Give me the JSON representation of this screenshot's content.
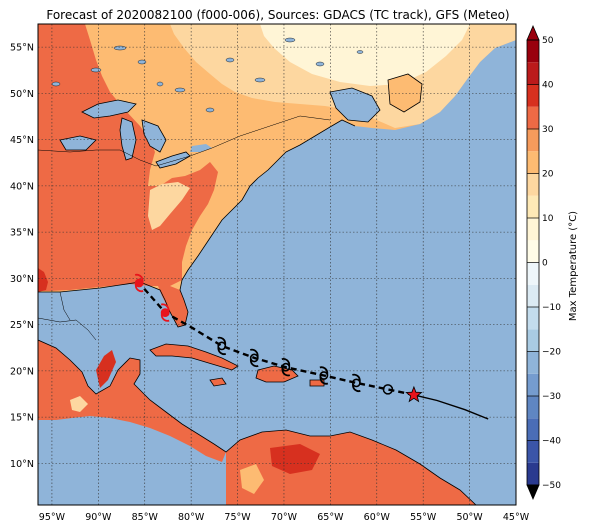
{
  "title": "Forecast of 2020082100 (f000-006), Sources: GDACS (TC track), GFS (Meteo)",
  "map": {
    "lon_range": [
      -96.5,
      -45
    ],
    "lat_range": [
      5.5,
      57.5
    ],
    "lon_ticks": [
      {
        "value": -95,
        "label": "95°W"
      },
      {
        "value": -90,
        "label": "90°W"
      },
      {
        "value": -85,
        "label": "85°W"
      },
      {
        "value": -80,
        "label": "80°W"
      },
      {
        "value": -75,
        "label": "75°W"
      },
      {
        "value": -70,
        "label": "70°W"
      },
      {
        "value": -65,
        "label": "65°W"
      },
      {
        "value": -60,
        "label": "60°W"
      },
      {
        "value": -55,
        "label": "55°W"
      },
      {
        "value": -50,
        "label": "50°W"
      },
      {
        "value": -45,
        "label": "45°W"
      }
    ],
    "lat_ticks": [
      {
        "value": 10,
        "label": "10°N"
      },
      {
        "value": 15,
        "label": "15°N"
      },
      {
        "value": 20,
        "label": "20°N"
      },
      {
        "value": 25,
        "label": "25°N"
      },
      {
        "value": 30,
        "label": "30°N"
      },
      {
        "value": 35,
        "label": "35°N"
      },
      {
        "value": 40,
        "label": "40°N"
      },
      {
        "value": 45,
        "label": "45°N"
      },
      {
        "value": 50,
        "label": "50°N"
      },
      {
        "value": 55,
        "label": "55°N"
      }
    ],
    "ocean_color": "#8fb4d9",
    "colors": {
      "deep": "#d7301f",
      "hot": "#ee6a45",
      "warm": "#fdbb72",
      "mild": "#fdd7a0",
      "cool": "#fff5d6"
    }
  },
  "colorbar": {
    "label": "Max Temperature (°C)",
    "range": [
      -50,
      50
    ],
    "ticks": [
      {
        "value": 50,
        "label": "50"
      },
      {
        "value": 40,
        "label": "40"
      },
      {
        "value": 30,
        "label": "30"
      },
      {
        "value": 20,
        "label": "20"
      },
      {
        "value": 10,
        "label": "10"
      },
      {
        "value": 0,
        "label": "0"
      },
      {
        "value": -10,
        "label": "−10"
      },
      {
        "value": -20,
        "label": "−20"
      },
      {
        "value": -30,
        "label": "−30"
      },
      {
        "value": -40,
        "label": "−40"
      },
      {
        "value": -50,
        "label": "−50"
      }
    ],
    "bands": [
      {
        "from": -50,
        "to": -45,
        "color": "#2a3a8f"
      },
      {
        "from": -45,
        "to": -40,
        "color": "#3b55a8"
      },
      {
        "from": -40,
        "to": -35,
        "color": "#4a6db6"
      },
      {
        "from": -35,
        "to": -30,
        "color": "#5f86c2"
      },
      {
        "from": -30,
        "to": -25,
        "color": "#759ccf"
      },
      {
        "from": -25,
        "to": -20,
        "color": "#8fb4d9"
      },
      {
        "from": -20,
        "to": -15,
        "color": "#a9cbe3"
      },
      {
        "from": -15,
        "to": -10,
        "color": "#c3dced"
      },
      {
        "from": -10,
        "to": -5,
        "color": "#dbeaf3"
      },
      {
        "from": -5,
        "to": 0,
        "color": "#eef6fa"
      },
      {
        "from": 0,
        "to": 5,
        "color": "#fffce8"
      },
      {
        "from": 5,
        "to": 10,
        "color": "#fff5d6"
      },
      {
        "from": 10,
        "to": 15,
        "color": "#fee9b6"
      },
      {
        "from": 15,
        "to": 20,
        "color": "#fdd7a0"
      },
      {
        "from": 20,
        "to": 25,
        "color": "#fdbb72"
      },
      {
        "from": 25,
        "to": 30,
        "color": "#f69b5c"
      },
      {
        "from": 30,
        "to": 35,
        "color": "#ee6a45"
      },
      {
        "from": 35,
        "to": 40,
        "color": "#d7301f"
      },
      {
        "from": 40,
        "to": 45,
        "color": "#bb1a1b"
      },
      {
        "from": 45,
        "to": 50,
        "color": "#99000d"
      }
    ]
  },
  "track": {
    "observed": [
      {
        "lon": -56.0,
        "lat": 17.4
      },
      {
        "lon": -58.8,
        "lat": 18.0
      },
      {
        "lon": -62.2,
        "lat": 18.7
      },
      {
        "lon": -65.7,
        "lat": 19.5
      },
      {
        "lon": -69.8,
        "lat": 20.4
      },
      {
        "lon": -73.2,
        "lat": 21.4
      },
      {
        "lon": -76.7,
        "lat": 22.7
      },
      {
        "lon": -79.8,
        "lat": 24.6
      },
      {
        "lon": -82.8,
        "lat": 26.3
      },
      {
        "lon": -85.6,
        "lat": 29.5
      }
    ],
    "forecast": [
      {
        "lon": -56.0,
        "lat": 17.4
      },
      {
        "lon": -53.5,
        "lat": 16.8
      },
      {
        "lon": -50.5,
        "lat": 15.8
      },
      {
        "lon": -48.0,
        "lat": 14.8
      }
    ],
    "current_position": {
      "lon": -56.0,
      "lat": 17.4
    },
    "markers": [
      {
        "lon": -58.8,
        "lat": 18.0,
        "symbol": "low-circle-icon",
        "color": "#000000"
      },
      {
        "lon": -62.2,
        "lat": 18.7,
        "symbol": "tropical-storm-icon",
        "color": "#000000"
      },
      {
        "lon": -65.7,
        "lat": 19.5,
        "symbol": "tropical-storm-icon",
        "color": "#000000"
      },
      {
        "lon": -69.8,
        "lat": 20.4,
        "symbol": "tropical-storm-icon",
        "color": "#000000"
      },
      {
        "lon": -73.2,
        "lat": 21.4,
        "symbol": "tropical-storm-icon",
        "color": "#000000"
      },
      {
        "lon": -76.7,
        "lat": 22.7,
        "symbol": "tropical-storm-icon",
        "color": "#000000"
      },
      {
        "lon": -82.8,
        "lat": 26.3,
        "symbol": "hurricane-icon",
        "color": "#e8141c"
      },
      {
        "lon": -85.6,
        "lat": 29.5,
        "symbol": "hurricane-icon",
        "color": "#e8141c"
      }
    ],
    "star_color": "#e8141c"
  }
}
